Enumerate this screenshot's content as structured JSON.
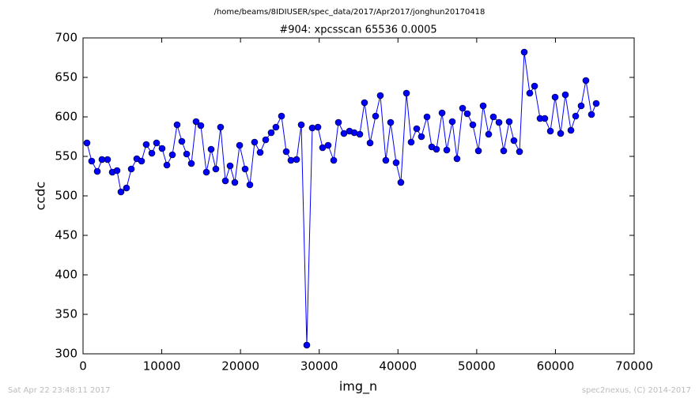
{
  "chart_data": {
    "type": "line",
    "suptitle": "/home/beams/8IDIUSER/spec_data/2017/Apr2017/jonghun20170418",
    "title": "#904: xpcsscan 65536 0.0005",
    "xlabel": "img_n",
    "ylabel": "ccdc",
    "footer_left": "Sat Apr 22 23:48:11 2017",
    "footer_right": "spec2nexus, (C) 2014-2017",
    "xlim": [
      0,
      70000
    ],
    "xticks": [
      0,
      10000,
      20000,
      30000,
      40000,
      50000,
      60000,
      70000
    ],
    "ylim": [
      300,
      700
    ],
    "yticks": [
      300,
      350,
      400,
      450,
      500,
      550,
      600,
      650,
      700
    ],
    "grid": false,
    "x": [
      500,
      1100,
      1810,
      2410,
      3110,
      3720,
      4320,
      4820,
      5520,
      6130,
      6830,
      7430,
      8030,
      8740,
      9340,
      10040,
      10650,
      11350,
      11950,
      12550,
      13160,
      13760,
      14360,
      14960,
      15670,
      16270,
      16870,
      17470,
      18080,
      18680,
      19280,
      19890,
      20590,
      21190,
      21790,
      22500,
      23200,
      23900,
      24500,
      25210,
      25810,
      26410,
      27120,
      27720,
      28420,
      29120,
      29830,
      30430,
      31130,
      31840,
      32440,
      33140,
      33840,
      34450,
      35150,
      35750,
      36460,
      37160,
      37760,
      38460,
      39070,
      39770,
      40370,
      41080,
      41680,
      42380,
      42980,
      43690,
      44290,
      44890,
      45600,
      46200,
      46900,
      47500,
      48210,
      48810,
      49510,
      50220,
      50820,
      51520,
      52120,
      52830,
      53430,
      54130,
      54730,
      55440,
      56040,
      56740,
      57350,
      58050,
      58650,
      59360,
      59960,
      60660,
      61260,
      61970,
      62570,
      63270,
      63870,
      64580,
      65180
    ],
    "series": [
      {
        "name": "ccdc",
        "color": "#0000ff",
        "values": [
          567,
          544,
          531,
          546,
          546,
          530,
          532,
          505,
          510,
          534,
          547,
          544,
          565,
          554,
          567,
          560,
          539,
          552,
          590,
          569,
          553,
          541,
          594,
          589,
          530,
          559,
          534,
          587,
          519,
          538,
          517,
          564,
          534,
          514,
          568,
          555,
          571,
          580,
          587,
          601,
          556,
          545,
          546,
          590,
          311,
          586,
          587,
          561,
          564,
          545,
          593,
          579,
          582,
          580,
          578,
          618,
          567,
          601,
          627,
          545,
          593,
          542,
          517,
          630,
          568,
          585,
          575,
          600,
          562,
          559,
          605,
          558,
          594,
          547,
          611,
          604,
          590,
          557,
          614,
          578,
          600,
          593,
          557,
          594,
          570,
          556,
          682,
          630,
          639,
          598,
          598,
          582,
          625,
          579,
          628,
          583,
          601,
          614,
          646,
          603,
          617
        ]
      }
    ]
  }
}
